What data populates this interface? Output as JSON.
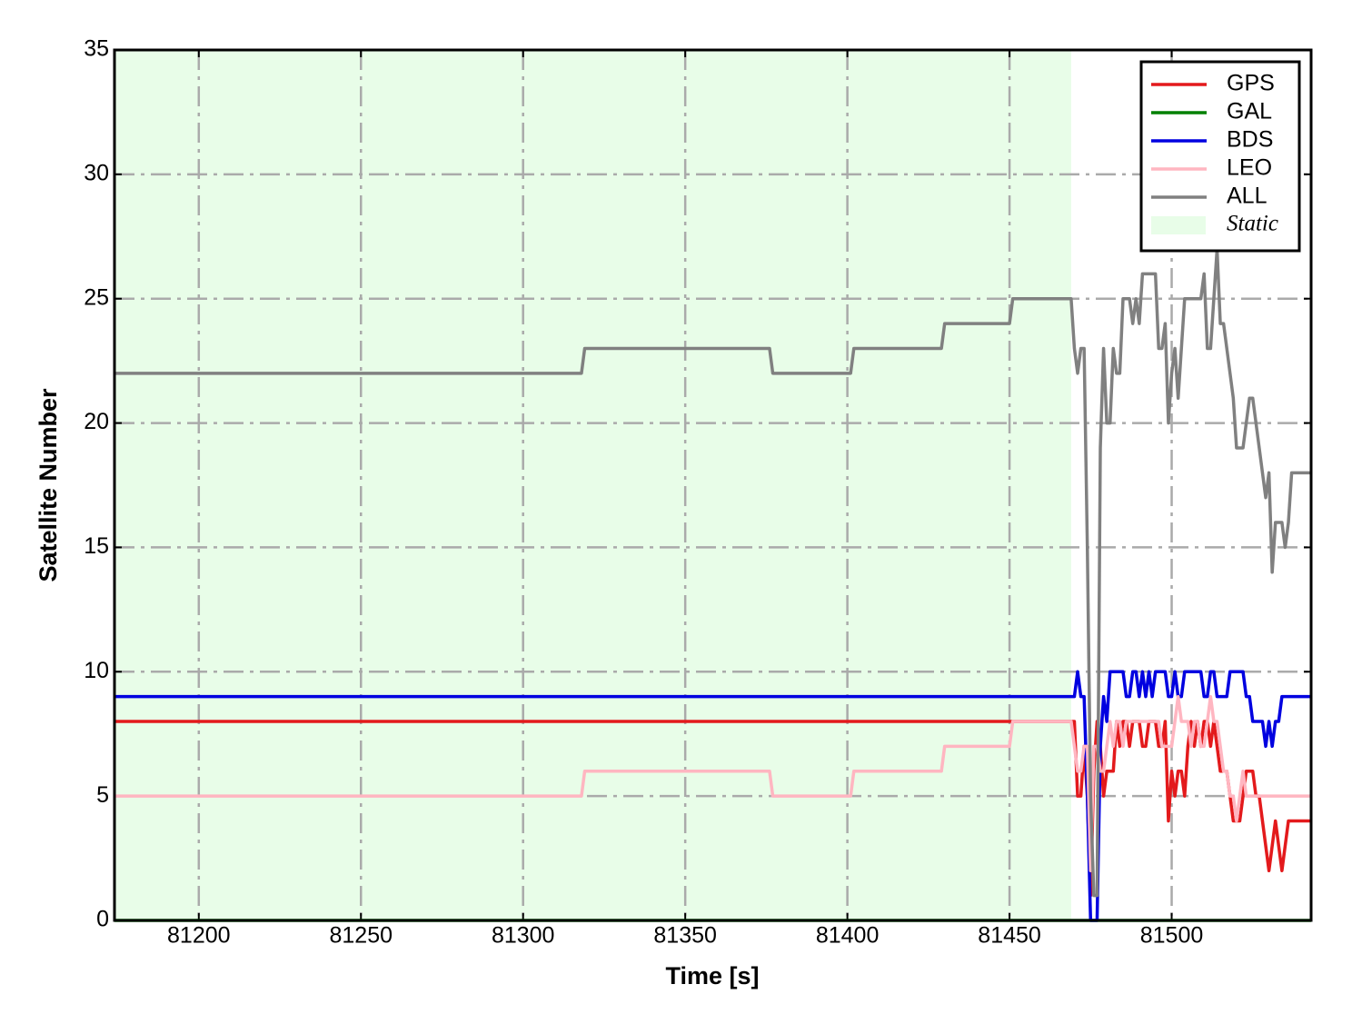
{
  "chart_data": {
    "type": "line",
    "xlabel": "Time [s]",
    "ylabel": "Satellite Number",
    "x": [
      81174,
      81318,
      81319,
      81376,
      81377,
      81401,
      81402,
      81429,
      81430,
      81450,
      81451,
      81469,
      81470,
      81471,
      81472,
      81473,
      81474,
      81475,
      81476,
      81477,
      81478,
      81479,
      81480,
      81481,
      81482,
      81483,
      81484,
      81485,
      81486,
      81487,
      81488,
      81489,
      81490,
      81491,
      81492,
      81493,
      81494,
      81495,
      81496,
      81497,
      81498,
      81499,
      81500,
      81501,
      81502,
      81503,
      81504,
      81505,
      81506,
      81507,
      81508,
      81509,
      81510,
      81511,
      81512,
      81513,
      81514,
      81515,
      81516,
      81517,
      81518,
      81519,
      81520,
      81521,
      81522,
      81523,
      81524,
      81525,
      81526,
      81527,
      81528,
      81529,
      81530,
      81531,
      81532,
      81533,
      81534,
      81535,
      81536,
      81537,
      81538,
      81539,
      81540,
      81541,
      81542,
      81543
    ],
    "series": [
      {
        "name": "GPS",
        "color": "#e31a1c",
        "values": [
          8,
          8,
          8,
          8,
          8,
          8,
          8,
          8,
          8,
          8,
          8,
          8,
          8,
          5,
          5,
          7,
          5,
          1,
          6,
          8,
          7,
          5,
          6,
          6,
          6,
          8,
          7,
          8,
          8,
          7,
          8,
          8,
          8,
          7,
          7,
          8,
          8,
          8,
          7,
          7,
          8,
          4,
          6,
          5,
          6,
          6,
          5,
          7,
          8,
          7,
          8,
          7,
          8,
          8,
          7,
          8,
          7,
          6,
          6,
          6,
          5,
          4,
          4,
          4,
          5,
          6,
          6,
          6,
          5,
          5,
          4,
          3,
          2,
          3,
          4,
          3,
          2,
          3,
          4,
          4,
          4,
          4,
          4,
          4,
          4,
          4
        ]
      },
      {
        "name": "GAL",
        "color": "#008000",
        "values": [
          0,
          0,
          0,
          0,
          0,
          0,
          0,
          0,
          0,
          0,
          0,
          0,
          0,
          0,
          0,
          0,
          0,
          0,
          0,
          0,
          0,
          0,
          0,
          0,
          0,
          0,
          0,
          0,
          0,
          0,
          0,
          0,
          0,
          0,
          0,
          0,
          0,
          0,
          0,
          0,
          0,
          0,
          0,
          0,
          0,
          0,
          0,
          0,
          0,
          0,
          0,
          0,
          0,
          0,
          0,
          0,
          0,
          0,
          0,
          0,
          0,
          0,
          0,
          0,
          0,
          0,
          0,
          0,
          0,
          0,
          0,
          0,
          0,
          0,
          0,
          0,
          0,
          0,
          0,
          0,
          0,
          0,
          0,
          0,
          0,
          0
        ]
      },
      {
        "name": "BDS",
        "color": "#0000e0",
        "values": [
          9,
          9,
          9,
          9,
          9,
          9,
          9,
          9,
          9,
          9,
          9,
          9,
          9,
          10,
          9,
          9,
          5,
          0,
          0,
          0,
          7,
          9,
          8,
          10,
          10,
          10,
          10,
          10,
          9,
          9,
          10,
          10,
          9,
          10,
          9,
          10,
          9,
          10,
          10,
          10,
          10,
          9,
          9,
          10,
          9,
          9,
          10,
          10,
          10,
          10,
          10,
          10,
          9,
          9,
          10,
          10,
          9,
          9,
          9,
          9,
          10,
          10,
          10,
          10,
          10,
          9,
          9,
          8,
          8,
          8,
          8,
          7,
          8,
          7,
          8,
          8,
          9,
          9,
          9,
          9,
          9,
          9,
          9,
          9,
          9,
          9
        ]
      },
      {
        "name": "LEO",
        "color": "#ffb6c1",
        "values": [
          5,
          5,
          6,
          6,
          5,
          5,
          6,
          6,
          7,
          7,
          8,
          8,
          7,
          6,
          6,
          7,
          7,
          2,
          7,
          7,
          6,
          6,
          7,
          8,
          7,
          8,
          8,
          7,
          8,
          8,
          8,
          8,
          8,
          8,
          8,
          8,
          8,
          8,
          8,
          7,
          7,
          7,
          7,
          8,
          9,
          8,
          8,
          8,
          7,
          8,
          8,
          7,
          7,
          8,
          9,
          8,
          8,
          7,
          6,
          6,
          5,
          5,
          4,
          5,
          6,
          5,
          5,
          5,
          5,
          5,
          5,
          5,
          5,
          5,
          5,
          5,
          5,
          5,
          5,
          5,
          5,
          5,
          5,
          5,
          5,
          5
        ]
      },
      {
        "name": "ALL",
        "color": "#808080",
        "values": [
          22,
          22,
          23,
          23,
          22,
          22,
          23,
          23,
          24,
          24,
          25,
          25,
          23,
          22,
          23,
          23,
          15,
          5,
          1,
          1,
          19,
          23,
          20,
          20,
          23,
          22,
          22,
          25,
          25,
          25,
          24,
          25,
          24,
          26,
          26,
          26,
          26,
          26,
          23,
          23,
          24,
          20,
          22,
          23,
          21,
          23,
          25,
          25,
          25,
          25,
          25,
          25,
          26,
          23,
          23,
          25,
          27,
          24,
          24,
          23,
          22,
          21,
          19,
          19,
          19,
          20,
          21,
          21,
          20,
          19,
          18,
          17,
          18,
          14,
          16,
          16,
          16,
          15,
          16,
          18,
          18,
          18,
          18,
          18,
          18,
          18
        ]
      }
    ],
    "shaded_region": {
      "label": "Static",
      "start": 81174,
      "end": 81469,
      "color": "#e8fde8"
    },
    "xlim": [
      81174,
      81543
    ],
    "xticks": [
      81200,
      81250,
      81300,
      81350,
      81400,
      81450,
      81500
    ],
    "ylim": [
      0,
      35
    ],
    "yticks": [
      0,
      5,
      10,
      15,
      20,
      25,
      30,
      35
    ],
    "grid": true,
    "legend": "upper right"
  }
}
